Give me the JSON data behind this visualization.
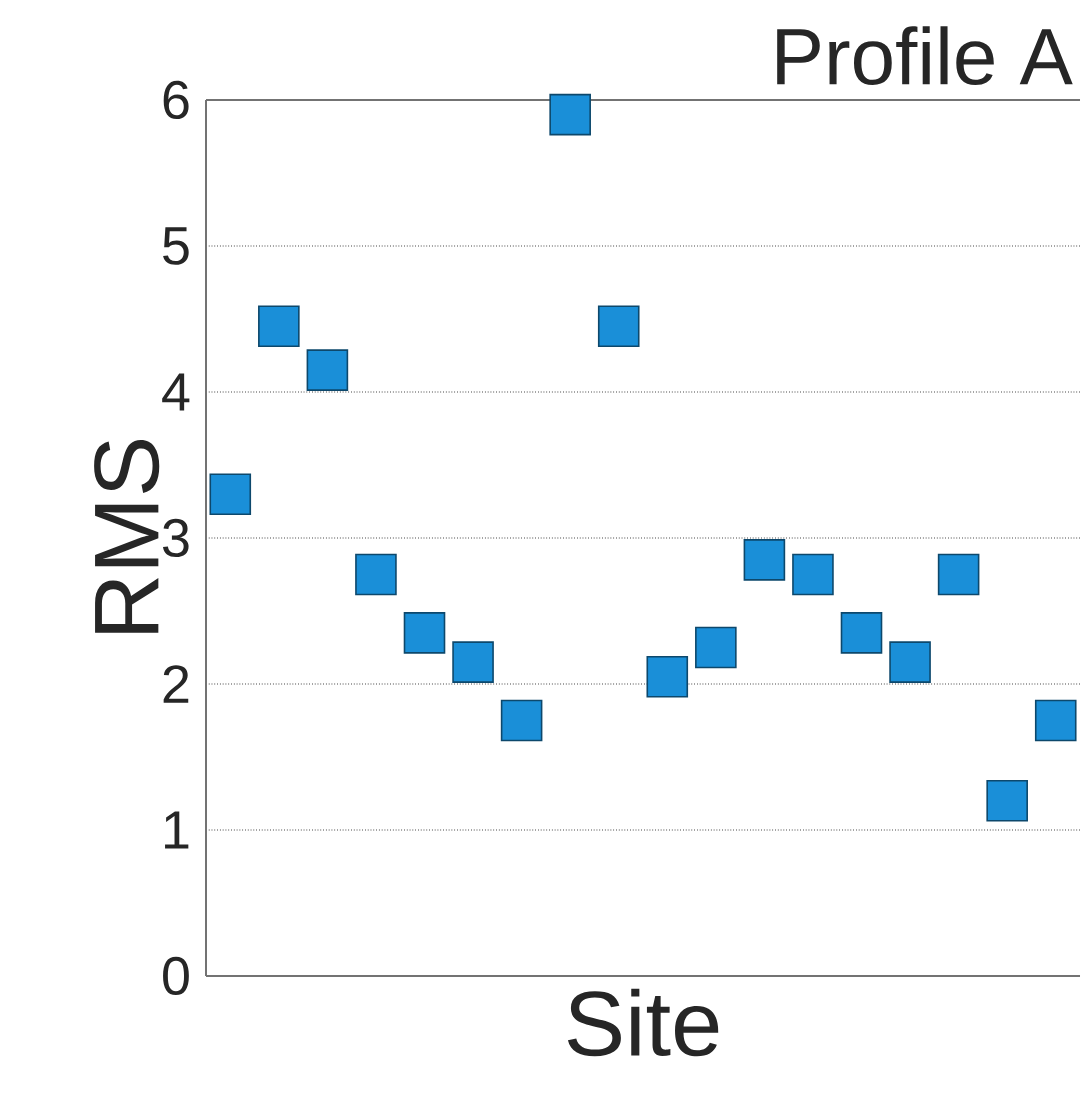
{
  "chart_data": {
    "type": "scatter",
    "title": "Profile A",
    "xlabel": "Site",
    "ylabel": "RMS",
    "categories": [
      null,
      null,
      null,
      null,
      null,
      null,
      null,
      null,
      null,
      null,
      null,
      null,
      null,
      null,
      null,
      null,
      null,
      null
    ],
    "series": [
      {
        "color": "#1a8fd8",
        "values": [
          3.3,
          4.45,
          4.15,
          2.75,
          2.35,
          2.15,
          1.75,
          5.9,
          4.45,
          2.05,
          2.25,
          2.85,
          2.75,
          2.35,
          2.15,
          2.75,
          1.2,
          1.75
        ]
      }
    ],
    "ylim": [
      0,
      6
    ],
    "yticks": [
      0,
      1,
      2,
      3,
      4,
      5,
      6
    ],
    "grid": "y",
    "marker": "square",
    "tick_labels": "y"
  }
}
